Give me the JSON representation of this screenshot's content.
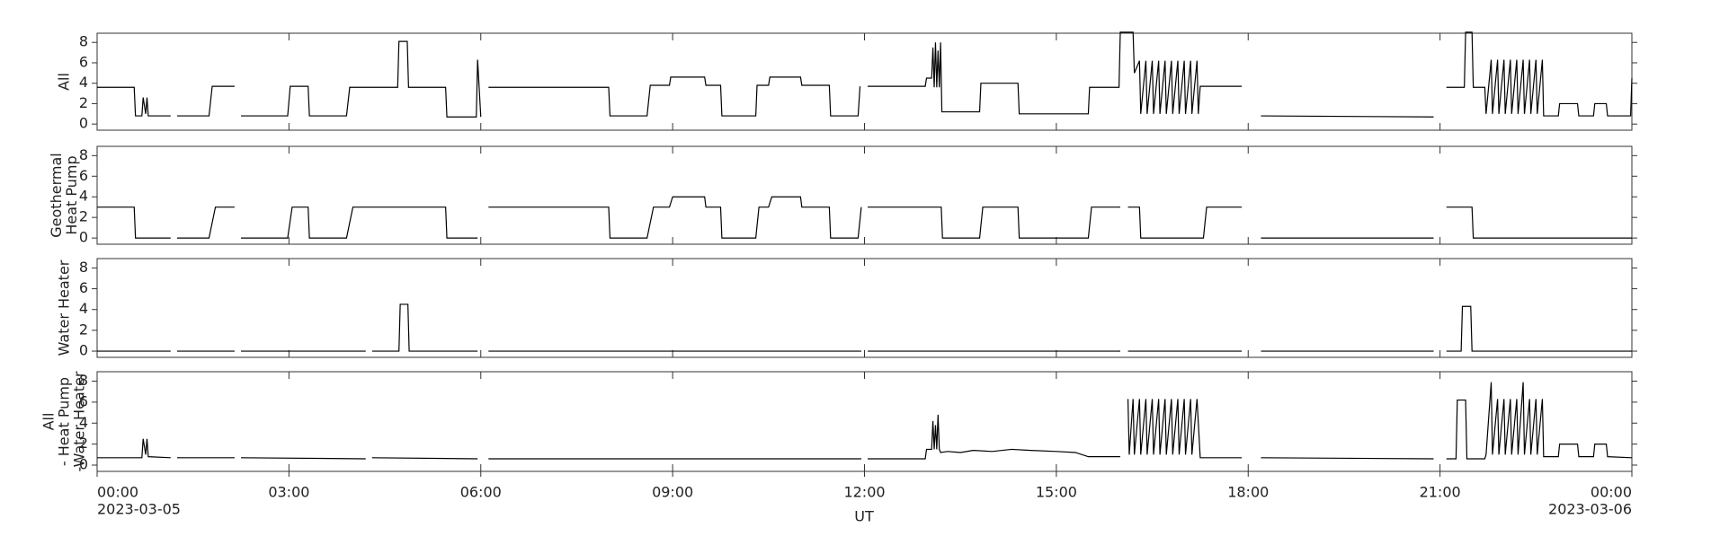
{
  "chart_data": [
    {
      "type": "line",
      "ylabel": [
        "All"
      ],
      "ylim": [
        -0.6,
        8.9
      ],
      "yticks": [
        0,
        2,
        4,
        6,
        8
      ],
      "color": "#000000",
      "x": [
        0,
        0.58,
        0.6,
        0.7,
        0.72,
        0.76,
        0.78,
        0.8,
        1.15,
        1.2,
        1.25,
        1.75,
        1.8,
        2.15,
        2.2,
        2.25,
        2.98,
        3.02,
        3.3,
        3.32,
        3.9,
        3.95,
        4.7,
        4.72,
        4.85,
        4.87,
        5.45,
        5.47,
        5.93,
        5.95,
        6.0,
        6.06,
        6.12,
        8.0,
        8.02,
        8.6,
        8.65,
        8.95,
        8.97,
        9.5,
        9.52,
        9.75,
        9.77,
        10.3,
        10.32,
        10.5,
        10.52,
        11.0,
        11.02,
        11.45,
        11.47,
        11.9,
        11.93,
        12.0,
        12.05,
        12.95,
        12.97,
        13.05,
        13.07,
        13.09,
        13.11,
        13.13,
        13.15,
        13.17,
        13.19,
        13.21,
        13.8,
        13.82,
        14.4,
        14.42,
        15.5,
        15.52,
        15.98,
        16.0,
        16.2,
        16.22,
        16.3,
        16.32,
        16.4,
        16.42,
        16.5,
        16.52,
        16.6,
        16.62,
        16.7,
        16.72,
        16.8,
        16.82,
        16.9,
        16.92,
        17.0,
        17.02,
        17.1,
        17.12,
        17.2,
        17.22,
        17.25,
        17.9,
        18.05,
        18.2,
        20.9,
        21.0,
        21.1,
        21.38,
        21.4,
        21.5,
        21.52,
        21.7,
        21.72,
        21.8,
        21.82,
        21.9,
        21.92,
        22.0,
        22.02,
        22.1,
        22.12,
        22.2,
        22.22,
        22.3,
        22.32,
        22.4,
        22.42,
        22.5,
        22.52,
        22.6,
        22.62,
        22.85,
        22.87,
        23.15,
        23.17,
        23.4,
        23.42,
        23.6,
        23.62,
        23.98,
        24
      ],
      "values": [
        3.6,
        3.6,
        0.8,
        0.8,
        2.6,
        1.0,
        2.6,
        0.8,
        0.8,
        null,
        0.8,
        0.8,
        3.7,
        3.7,
        null,
        0.8,
        0.8,
        3.7,
        3.7,
        0.8,
        0.8,
        3.6,
        3.6,
        8.1,
        8.1,
        3.6,
        3.6,
        0.7,
        0.7,
        6.3,
        0.7,
        null,
        3.6,
        3.6,
        0.8,
        0.8,
        3.8,
        3.8,
        4.6,
        4.6,
        3.8,
        3.8,
        0.8,
        0.8,
        3.8,
        3.8,
        4.6,
        4.6,
        3.8,
        3.8,
        0.8,
        0.8,
        3.7,
        null,
        3.7,
        3.7,
        4.5,
        4.5,
        7.5,
        3.6,
        8.0,
        3.6,
        7.2,
        3.6,
        8.0,
        1.2,
        1.2,
        4.0,
        4.0,
        1.0,
        1.0,
        3.6,
        3.6,
        9.0,
        9.0,
        5.0,
        6.2,
        1.0,
        6.2,
        1.0,
        6.2,
        1.0,
        6.2,
        1.0,
        6.2,
        1.0,
        6.2,
        1.0,
        6.2,
        1.0,
        6.2,
        1.0,
        6.2,
        1.0,
        6.2,
        1.0,
        3.7,
        3.7,
        null,
        0.8,
        0.7,
        null,
        3.6,
        3.6,
        9.0,
        9.0,
        3.6,
        3.6,
        1.0,
        6.3,
        1.0,
        6.3,
        1.0,
        6.3,
        1.0,
        6.3,
        1.0,
        6.3,
        1.0,
        6.3,
        1.0,
        6.3,
        1.0,
        6.3,
        1.0,
        6.3,
        0.8,
        0.8,
        2.0,
        2.0,
        0.8,
        0.8,
        2.0,
        2.0,
        0.8,
        0.8,
        4.5
      ]
    },
    {
      "type": "line",
      "ylabel": [
        "Geothermal",
        "Heat Pump"
      ],
      "ylim": [
        -0.6,
        8.9
      ],
      "yticks": [
        0,
        2,
        4,
        6,
        8
      ],
      "color": "#000000",
      "x": [
        0,
        0.58,
        0.6,
        1.15,
        1.2,
        1.25,
        1.75,
        1.85,
        2.15,
        2.2,
        2.25,
        2.98,
        3.05,
        3.3,
        3.32,
        3.9,
        4.0,
        5.45,
        5.47,
        5.95,
        6.06,
        6.12,
        8.0,
        8.02,
        8.6,
        8.7,
        8.95,
        9.0,
        9.5,
        9.52,
        9.75,
        9.77,
        10.3,
        10.35,
        10.5,
        10.55,
        11.0,
        11.02,
        11.45,
        11.47,
        11.9,
        11.95,
        12.0,
        12.05,
        13.2,
        13.22,
        13.8,
        13.85,
        14.4,
        14.42,
        15.5,
        15.55,
        16.0,
        16.06,
        16.12,
        16.3,
        16.32,
        17.3,
        17.35,
        17.9,
        18.05,
        18.2,
        20.9,
        21.0,
        21.1,
        21.5,
        21.52,
        24
      ],
      "values": [
        3.0,
        3.0,
        0,
        0,
        null,
        0,
        0,
        3.0,
        3.0,
        null,
        0,
        0,
        3.0,
        3.0,
        0,
        0,
        3.0,
        3.0,
        0,
        0,
        null,
        3.0,
        3.0,
        0,
        0,
        3.0,
        3.0,
        4.0,
        4.0,
        3.0,
        3.0,
        0,
        0,
        3.0,
        3.0,
        4.0,
        4.0,
        3.0,
        3.0,
        0,
        0,
        3.0,
        null,
        3.0,
        3.0,
        0,
        0,
        3.0,
        3.0,
        0,
        0,
        3.0,
        3.0,
        null,
        3.0,
        3.0,
        0,
        0,
        3.0,
        3.0,
        null,
        0,
        0,
        null,
        3.0,
        3.0,
        0,
        0
      ]
    },
    {
      "type": "line",
      "ylabel": [
        "Water Heater"
      ],
      "ylim": [
        -0.6,
        8.9
      ],
      "yticks": [
        0,
        2,
        4,
        6,
        8
      ],
      "color": "#000000",
      "x": [
        0,
        1.15,
        1.2,
        1.25,
        2.15,
        2.2,
        2.25,
        4.2,
        4.25,
        4.3,
        4.72,
        4.74,
        4.86,
        4.88,
        5.95,
        6.06,
        6.12,
        11.95,
        12.0,
        12.05,
        16.0,
        16.06,
        16.12,
        17.9,
        18.05,
        18.2,
        20.9,
        21.0,
        21.1,
        21.33,
        21.35,
        21.48,
        21.5,
        24
      ],
      "values": [
        0,
        0,
        null,
        0,
        0,
        null,
        0,
        0,
        null,
        0,
        0,
        4.5,
        4.5,
        0,
        0,
        null,
        0,
        0,
        null,
        0,
        0,
        null,
        0,
        0,
        null,
        0,
        0,
        null,
        0,
        0,
        4.3,
        4.3,
        0,
        0
      ]
    },
    {
      "type": "line",
      "ylabel": [
        "All",
        "- Heat Pump",
        "-Water Heater"
      ],
      "ylim": [
        -0.6,
        8.9
      ],
      "yticks": [
        0,
        2,
        4,
        6,
        8
      ],
      "color": "#000000",
      "x": [
        0,
        0.7,
        0.72,
        0.76,
        0.78,
        0.8,
        1.15,
        1.2,
        1.25,
        2.15,
        2.2,
        2.25,
        4.2,
        4.25,
        4.3,
        5.95,
        6.06,
        6.12,
        11.95,
        12.0,
        12.05,
        12.95,
        12.97,
        13.05,
        13.07,
        13.09,
        13.11,
        13.13,
        13.15,
        13.17,
        13.19,
        13.3,
        13.5,
        13.7,
        14.0,
        14.3,
        14.6,
        15.0,
        15.3,
        15.5,
        16.0,
        16.06,
        16.12,
        16.14,
        16.2,
        16.22,
        16.3,
        16.32,
        16.4,
        16.42,
        16.5,
        16.52,
        16.6,
        16.62,
        16.7,
        16.72,
        16.8,
        16.82,
        16.9,
        16.92,
        17.0,
        17.02,
        17.1,
        17.12,
        17.2,
        17.25,
        17.9,
        18.05,
        18.2,
        20.9,
        21.0,
        21.1,
        21.25,
        21.27,
        21.4,
        21.42,
        21.7,
        21.72,
        21.8,
        21.82,
        21.9,
        21.92,
        22.0,
        22.02,
        22.1,
        22.12,
        22.2,
        22.22,
        22.3,
        22.32,
        22.4,
        22.42,
        22.5,
        22.52,
        22.6,
        22.62,
        22.85,
        22.87,
        23.15,
        23.17,
        23.4,
        23.42,
        23.6,
        23.62,
        24
      ],
      "values": [
        0.7,
        0.7,
        2.5,
        1.0,
        2.5,
        0.8,
        0.7,
        null,
        0.7,
        0.7,
        null,
        0.7,
        0.6,
        null,
        0.7,
        0.6,
        null,
        0.6,
        0.6,
        null,
        0.6,
        0.6,
        1.5,
        1.5,
        4.2,
        1.5,
        3.8,
        1.5,
        4.8,
        1.5,
        1.2,
        1.3,
        1.2,
        1.4,
        1.3,
        1.5,
        1.4,
        1.3,
        1.2,
        0.8,
        0.8,
        null,
        6.3,
        1.0,
        6.3,
        1.0,
        6.3,
        1.0,
        6.3,
        1.0,
        6.3,
        1.0,
        6.3,
        1.0,
        6.3,
        1.0,
        6.3,
        1.0,
        6.3,
        1.0,
        6.3,
        1.0,
        6.3,
        1.0,
        6.3,
        0.7,
        0.7,
        null,
        0.7,
        0.6,
        null,
        0.6,
        0.6,
        6.2,
        6.2,
        0.6,
        0.6,
        1.0,
        7.9,
        1.0,
        6.3,
        1.0,
        6.3,
        1.0,
        6.3,
        1.0,
        6.3,
        1.0,
        7.9,
        1.0,
        6.3,
        1.0,
        6.3,
        1.0,
        6.3,
        0.8,
        0.8,
        2.0,
        2.0,
        0.8,
        0.8,
        2.0,
        2.0,
        0.8,
        0.7
      ]
    }
  ],
  "x_axis": {
    "xlim": [
      0,
      24
    ],
    "xlabel": "UT",
    "start_date": "2023-03-05",
    "end_date": "2023-03-06",
    "xticks": [
      {
        "value": 0,
        "label": "00:00"
      },
      {
        "value": 3,
        "label": "03:00"
      },
      {
        "value": 6,
        "label": "06:00"
      },
      {
        "value": 9,
        "label": "09:00"
      },
      {
        "value": 12,
        "label": "12:00"
      },
      {
        "value": 15,
        "label": "15:00"
      },
      {
        "value": 18,
        "label": "18:00"
      },
      {
        "value": 21,
        "label": "21:00"
      },
      {
        "value": 24,
        "label": "00:00"
      }
    ]
  }
}
